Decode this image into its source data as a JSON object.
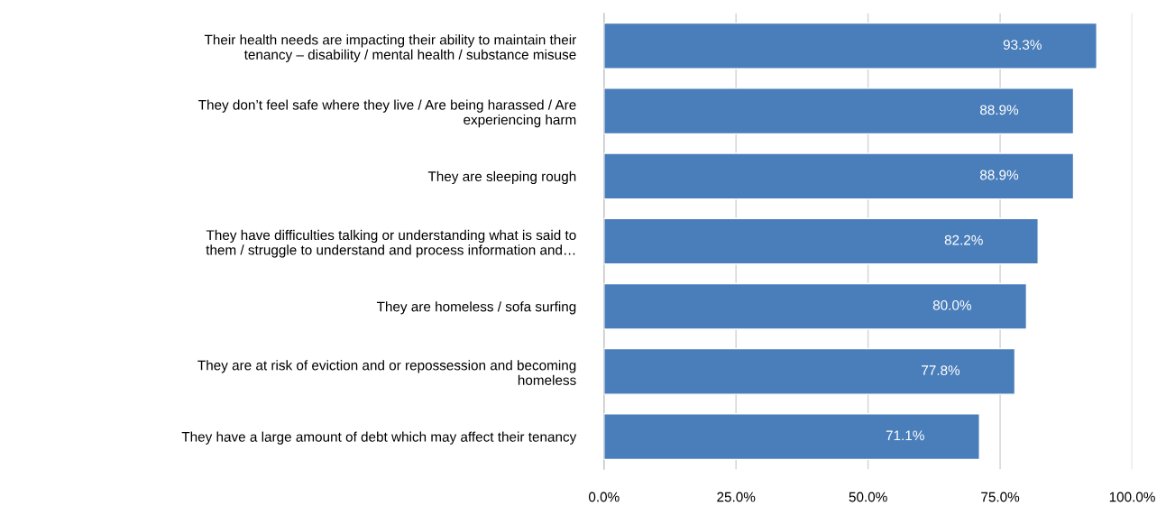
{
  "chart_data": {
    "type": "bar",
    "orientation": "horizontal",
    "categories": [
      "Their health needs are impacting their ability to maintain their\ntenancy – disability / mental health / substance misuse",
      "They don’t feel safe where they live / Are being harassed / Are\nexperiencing harm",
      "They are sleeping rough",
      "They have difficulties talking or understanding what is said to\nthem / struggle to understand and process information and…",
      "They are homeless / sofa surfing",
      "They are at risk of eviction and or repossession and becoming\nhomeless",
      "They have a large amount of debt which may affect their tenancy"
    ],
    "values": [
      93.3,
      88.9,
      88.9,
      82.2,
      80.0,
      77.8,
      71.1
    ],
    "value_labels": [
      "93.3%",
      "88.9%",
      "88.9%",
      "82.2%",
      "80.0%",
      "77.8%",
      "71.1%"
    ],
    "color": "#4a7ebb",
    "xlim": [
      0,
      100
    ],
    "xticks": [
      {
        "value": 0,
        "label": "0.0%"
      },
      {
        "value": 25,
        "label": "25.0%"
      },
      {
        "value": 50,
        "label": "50.0%"
      },
      {
        "value": 75,
        "label": "75.0%"
      },
      {
        "value": 100,
        "label": "100.0%"
      }
    ],
    "grid": "x"
  }
}
